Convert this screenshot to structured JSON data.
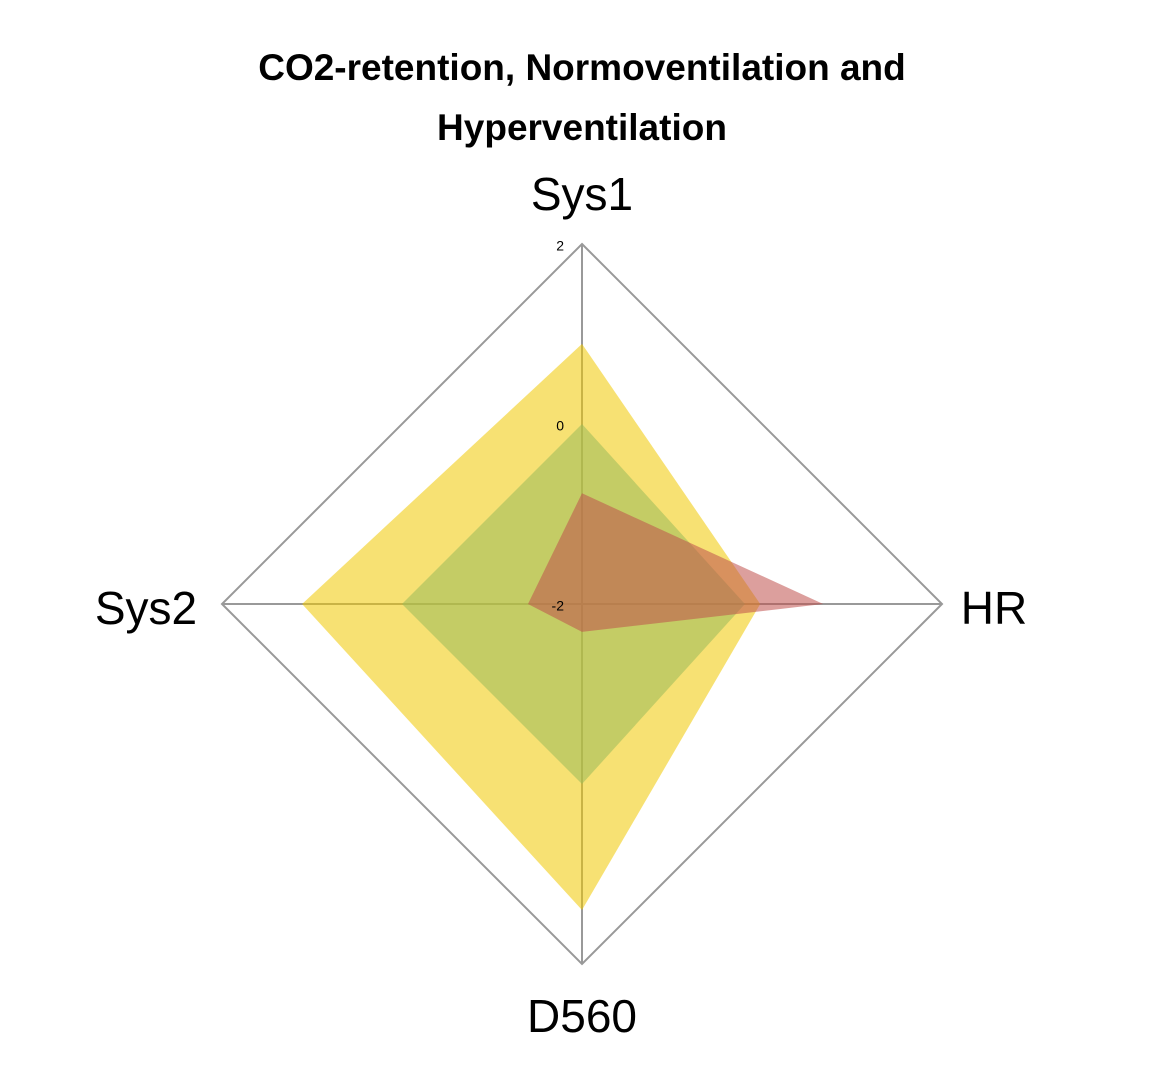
{
  "chart_data": {
    "type": "radar",
    "title": "CO2-retention, Normoventilation and\nHyperventilation",
    "categories": [
      "Sys1",
      "HR",
      "D560",
      "Sys2"
    ],
    "series": [
      {
        "color": "#f0c800",
        "values": [
          0.89,
          -0.02,
          1.4,
          1.11
        ]
      },
      {
        "color": "#9bbb59",
        "values": [
          0,
          -0.19,
          0,
          0
        ]
      },
      {
        "color": "#c0504d",
        "values": [
          -0.77,
          0.68,
          -1.69,
          -1.4
        ]
      }
    ],
    "ylim": [
      -2,
      2
    ],
    "yticks": [
      -2,
      0,
      2
    ]
  }
}
